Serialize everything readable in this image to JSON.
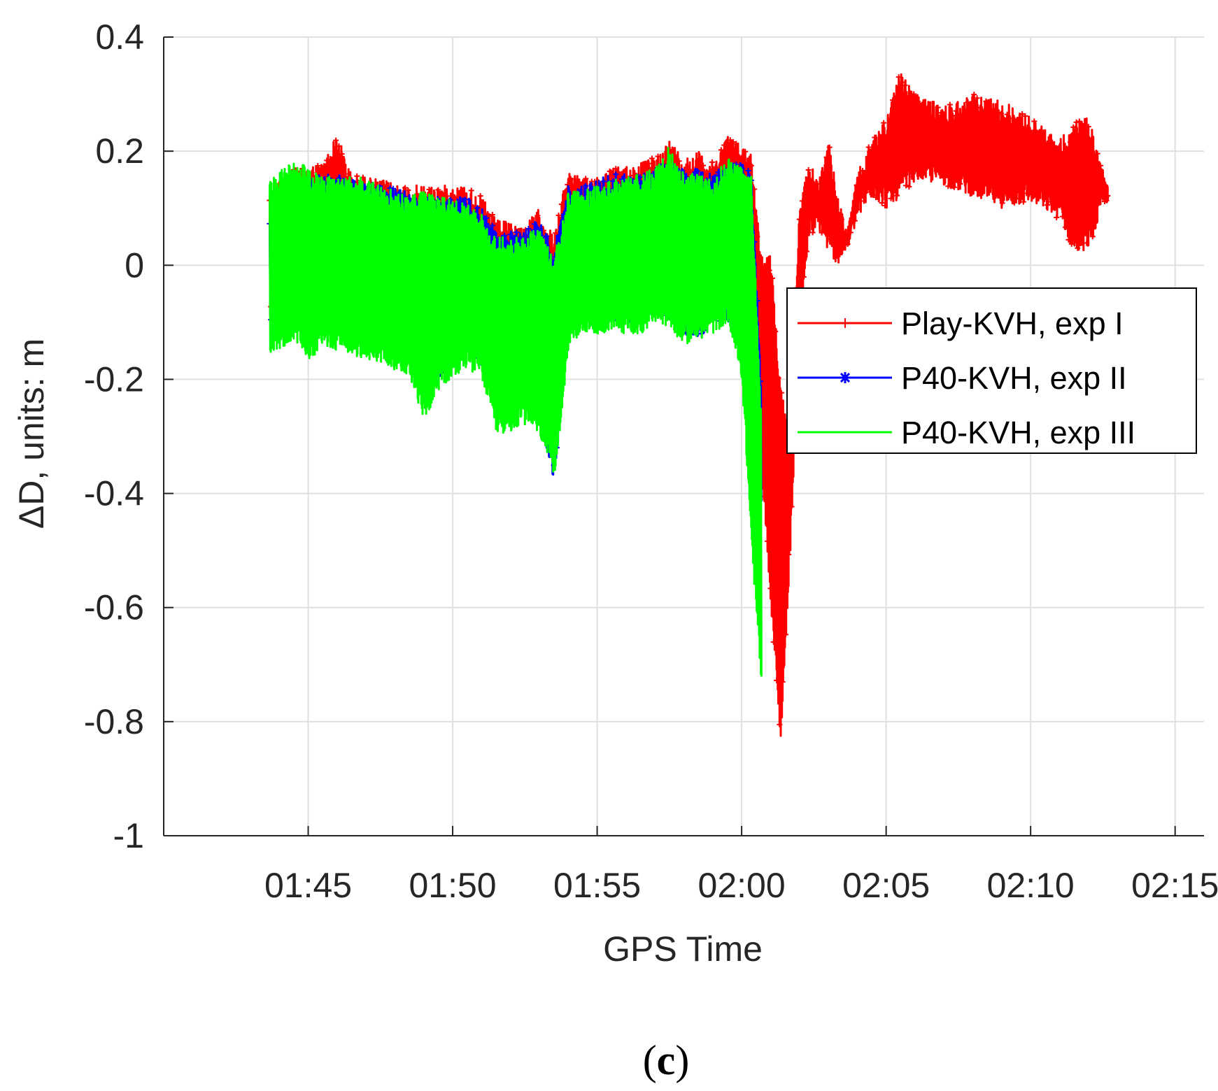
{
  "chart_data": {
    "type": "line",
    "title": "",
    "xlabel": "GPS Time",
    "ylabel": "ΔD, units: m",
    "caption_open": "(",
    "caption_letter": "c",
    "caption_close": ")",
    "x_unit": "minutes",
    "xlim": [
      "01:40",
      "02:16"
    ],
    "ylim": [
      -1,
      0.4
    ],
    "xticks": [
      "01:45",
      "01:50",
      "01:55",
      "02:00",
      "02:05",
      "02:10",
      "02:15"
    ],
    "yticks": [
      "0.4",
      "0.2",
      "0",
      "-0.2",
      "-0.4",
      "-0.6",
      "-0.8",
      "-1"
    ],
    "ytick_values": [
      0.4,
      0.2,
      0,
      -0.2,
      -0.4,
      -0.6,
      -0.8,
      -1
    ],
    "grid": true,
    "legend_position": "right",
    "series": [
      {
        "name": "Play-KVH, exp I",
        "color": "#ff0000",
        "marker": "plus",
        "x": [
          "01:43:40",
          "01:44:30",
          "01:45:30",
          "01:46:00",
          "01:46:30",
          "01:47:30",
          "01:48:30",
          "01:49:30",
          "01:50:30",
          "01:51:00",
          "01:51:30",
          "01:52:30",
          "01:53:00",
          "01:53:30",
          "01:54:00",
          "01:54:30",
          "01:55:30",
          "01:56:30",
          "01:57:00",
          "01:57:30",
          "01:58:00",
          "01:58:30",
          "01:59:00",
          "01:59:30",
          "02:00:00",
          "02:00:20",
          "02:00:40",
          "02:01:00",
          "02:01:20",
          "02:01:40",
          "02:02:00",
          "02:02:20",
          "02:02:40",
          "02:03:00",
          "02:03:20",
          "02:03:40",
          "02:04:00",
          "02:04:30",
          "02:05:00",
          "02:05:30",
          "02:06:00",
          "02:07:00",
          "02:08:00",
          "02:09:00",
          "02:10:00",
          "02:11:00",
          "02:11:30",
          "02:12:00",
          "02:12:40"
        ],
        "y_upper": [
          0.14,
          0.17,
          0.18,
          0.23,
          0.16,
          0.15,
          0.14,
          0.14,
          0.14,
          0.12,
          0.08,
          0.07,
          0.1,
          0.05,
          0.17,
          0.15,
          0.17,
          0.18,
          0.19,
          0.22,
          0.19,
          0.2,
          0.18,
          0.23,
          0.21,
          0.2,
          0.02,
          0.02,
          -0.2,
          -0.3,
          0.1,
          0.18,
          0.15,
          0.22,
          0.12,
          0.06,
          0.16,
          0.22,
          0.26,
          0.34,
          0.3,
          0.28,
          0.3,
          0.29,
          0.26,
          0.22,
          0.25,
          0.26,
          0.14
        ],
        "y_lower": [
          -0.1,
          -0.09,
          -0.1,
          -0.08,
          -0.1,
          -0.12,
          -0.14,
          -0.18,
          -0.13,
          -0.16,
          -0.22,
          -0.2,
          -0.25,
          -0.3,
          -0.1,
          -0.07,
          -0.08,
          -0.08,
          -0.05,
          -0.08,
          -0.1,
          -0.12,
          -0.09,
          -0.08,
          -0.05,
          -0.15,
          -0.35,
          -0.6,
          -0.84,
          -0.5,
          -0.1,
          0.05,
          0.06,
          0.02,
          0.0,
          0.03,
          0.08,
          0.12,
          0.1,
          0.12,
          0.15,
          0.14,
          0.12,
          0.1,
          0.11,
          0.08,
          0.02,
          0.03,
          0.12
        ]
      },
      {
        "name": "P40-KVH, exp II",
        "color": "#0000ff",
        "marker": "asterisk",
        "x": [
          "01:43:40",
          "01:44:30",
          "01:45:30",
          "01:46:00",
          "01:46:30",
          "01:47:30",
          "01:48:30",
          "01:49:30",
          "01:50:30",
          "01:51:00",
          "01:51:30",
          "01:52:30",
          "01:53:00",
          "01:53:30",
          "01:54:00",
          "01:54:30",
          "01:55:30",
          "01:56:30",
          "01:57:00",
          "01:57:30",
          "01:58:00",
          "01:58:30",
          "01:59:00",
          "01:59:30",
          "02:00:00",
          "02:00:20",
          "02:00:40"
        ],
        "y_upper": [
          0.11,
          0.14,
          0.16,
          0.16,
          0.15,
          0.14,
          0.13,
          0.12,
          0.12,
          0.1,
          0.06,
          0.06,
          0.08,
          0.03,
          0.14,
          0.14,
          0.16,
          0.16,
          0.17,
          0.18,
          0.17,
          0.17,
          0.16,
          0.18,
          0.18,
          0.17,
          -0.2
        ],
        "y_lower": [
          -0.12,
          -0.1,
          -0.1,
          -0.12,
          -0.12,
          -0.13,
          -0.15,
          -0.2,
          -0.15,
          -0.18,
          -0.25,
          -0.22,
          -0.27,
          -0.38,
          -0.12,
          -0.1,
          -0.1,
          -0.1,
          -0.08,
          -0.1,
          -0.12,
          -0.13,
          -0.1,
          -0.1,
          -0.08,
          -0.3,
          -0.42
        ]
      },
      {
        "name": "P40-KVH, exp III",
        "color": "#00ff00",
        "marker": "none",
        "x": [
          "01:43:40",
          "01:44:30",
          "01:45:00",
          "01:45:30",
          "01:46:00",
          "01:46:30",
          "01:47:30",
          "01:48:30",
          "01:49:00",
          "01:49:30",
          "01:50:30",
          "01:51:00",
          "01:51:30",
          "01:52:30",
          "01:53:00",
          "01:53:30",
          "01:54:00",
          "01:54:30",
          "01:55:30",
          "01:56:30",
          "01:57:00",
          "01:57:30",
          "01:58:00",
          "01:58:30",
          "01:59:00",
          "01:59:30",
          "02:00:00",
          "02:00:20",
          "02:00:40"
        ],
        "y_upper": [
          0.15,
          0.19,
          0.17,
          0.16,
          0.15,
          0.16,
          0.14,
          0.12,
          0.13,
          0.12,
          0.11,
          0.09,
          0.05,
          0.05,
          0.07,
          0.01,
          0.13,
          0.13,
          0.15,
          0.16,
          0.17,
          0.21,
          0.16,
          0.16,
          0.15,
          0.19,
          0.17,
          0.16,
          -0.25
        ],
        "y_lower": [
          -0.16,
          -0.13,
          -0.17,
          -0.14,
          -0.15,
          -0.16,
          -0.17,
          -0.2,
          -0.27,
          -0.22,
          -0.18,
          -0.2,
          -0.3,
          -0.28,
          -0.3,
          -0.38,
          -0.14,
          -0.12,
          -0.12,
          -0.12,
          -0.1,
          -0.11,
          -0.14,
          -0.13,
          -0.12,
          -0.1,
          -0.21,
          -0.5,
          -0.74
        ]
      }
    ]
  }
}
